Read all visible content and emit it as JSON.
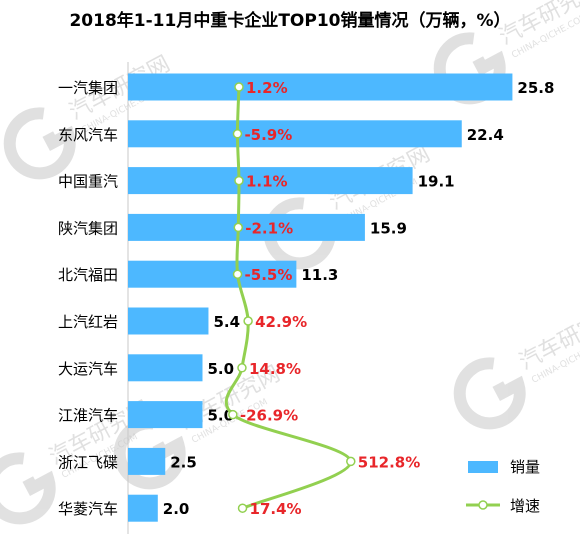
{
  "chart_data": {
    "type": "bar",
    "title": "2018年1-11月中重卡企业TOP10销量情况（万辆，%）",
    "categories": [
      "一汽集团",
      "东风汽车",
      "中国重汽",
      "陕汽集团",
      "北汽福田",
      "上汽红岩",
      "大运汽车",
      "江淮汽车",
      "浙江飞碟",
      "华菱汽车"
    ],
    "series": [
      {
        "name": "销量",
        "type": "bar",
        "color": "#4db8ff",
        "values": [
          25.8,
          22.4,
          19.1,
          15.9,
          11.3,
          5.4,
          5.0,
          5.0,
          2.5,
          2.0
        ],
        "labels": [
          "25.8",
          "22.4",
          "19.1",
          "15.9",
          "11.3",
          "5.4",
          "5.0",
          "5.0",
          "2.5",
          "2.0"
        ]
      },
      {
        "name": "增速",
        "type": "line",
        "color": "#92d050",
        "label_color": "#e8262a",
        "values": [
          1.2,
          -5.9,
          1.1,
          -2.1,
          -5.5,
          42.9,
          14.8,
          -26.9,
          512.8,
          17.4
        ],
        "labels": [
          "1.2%",
          "-5.9%",
          "1.1%",
          "-2.1%",
          "-5.5%",
          "42.9%",
          "14.8%",
          "-26.9%",
          "512.8%",
          "17.4%"
        ]
      }
    ],
    "orientation": "horizontal",
    "legend_position": "bottom-right",
    "grid": false
  },
  "watermark": {
    "text": "汽车研究网",
    "subtext": "CHINA-QICHE.COM",
    "color": "#c8c8c8"
  }
}
